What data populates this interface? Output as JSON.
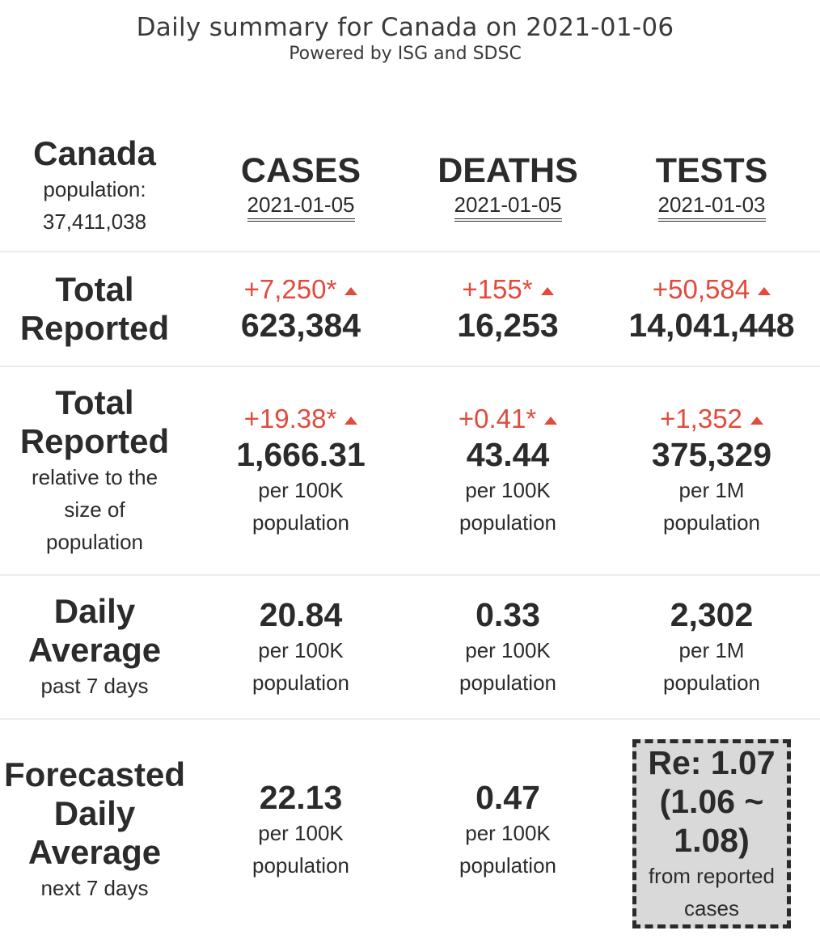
{
  "header": {
    "title": "Daily summary for Canada on 2021-01-06",
    "subtitle": "Powered by ISG and SDSC"
  },
  "region": {
    "name": "Canada",
    "population_label": "population:",
    "population": "37,411,038"
  },
  "columns": {
    "cases": {
      "label": "CASES",
      "date": "2021-01-05"
    },
    "deaths": {
      "label": "DEATHS",
      "date": "2021-01-05"
    },
    "tests": {
      "label": "TESTS",
      "date": "2021-01-03"
    }
  },
  "total_reported": {
    "label_line1": "Total",
    "label_line2": "Reported",
    "cases": {
      "delta": "+7,250*",
      "value": "623,384"
    },
    "deaths": {
      "delta": "+155*",
      "value": "16,253"
    },
    "tests": {
      "delta": "+50,584",
      "value": "14,041,448"
    }
  },
  "relative": {
    "label_line1": "Total",
    "label_line2": "Reported",
    "sub1": "relative to the",
    "sub2": "size of",
    "sub3": "population",
    "cases": {
      "delta": "+19.38*",
      "value": "1,666.31",
      "unit1": "per 100K",
      "unit2": "population"
    },
    "deaths": {
      "delta": "+0.41*",
      "value": "43.44",
      "unit1": "per 100K",
      "unit2": "population"
    },
    "tests": {
      "delta": "+1,352",
      "value": "375,329",
      "unit1": "per 1M",
      "unit2": "population"
    }
  },
  "daily_average": {
    "label_line1": "Daily",
    "label_line2": "Average",
    "sub": "past 7 days",
    "cases": {
      "value": "20.84",
      "unit1": "per 100K",
      "unit2": "population"
    },
    "deaths": {
      "value": "0.33",
      "unit1": "per 100K",
      "unit2": "population"
    },
    "tests": {
      "value": "2,302",
      "unit1": "per 1M",
      "unit2": "population"
    }
  },
  "forecast": {
    "label_line1": "Forecasted",
    "label_line2": "Daily",
    "label_line3": "Average",
    "sub": "next 7 days",
    "cases": {
      "value": "22.13",
      "unit1": "per 100K",
      "unit2": "population"
    },
    "deaths": {
      "value": "0.47",
      "unit1": "per 100K",
      "unit2": "population"
    },
    "re": {
      "line1": "Re: 1.07",
      "line2": "(1.06 ~",
      "line3": "1.08)",
      "sub1": "from reported",
      "sub2": "cases"
    }
  },
  "colors": {
    "delta": "#e24a3c",
    "text": "#2b2b2b",
    "re_box_bg": "#d9d9d9"
  },
  "icons": {
    "delta_arrow": "up-triangle-icon"
  }
}
